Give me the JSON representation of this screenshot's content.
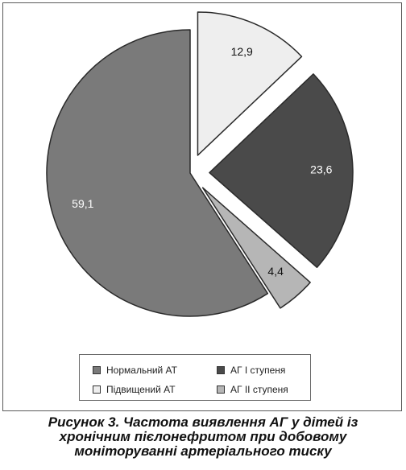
{
  "chart_data": {
    "type": "pie",
    "slices": [
      {
        "name": "Нормальний АТ",
        "value": 59.1,
        "label": "59,1",
        "color": "#7a7a7a",
        "label_color": "#ffffff",
        "exploded": false
      },
      {
        "name": "Підвищений АТ",
        "value": 12.9,
        "label": "12,9",
        "color": "#eeeeee",
        "label_color": "#111111",
        "exploded": true
      },
      {
        "name": "АГ I ступеня",
        "value": 23.6,
        "label": "23,6",
        "color": "#4a4a4a",
        "label_color": "#ffffff",
        "exploded": true
      },
      {
        "name": "АГ II ступеня",
        "value": 4.4,
        "label": "4,4",
        "color": "#b6b6b6",
        "label_color": "#111111",
        "exploded": true
      }
    ],
    "legend": {
      "placement": "bottom",
      "entries": [
        {
          "label": "Нормальний АТ",
          "color": "#7a7a7a"
        },
        {
          "label": "АГ I ступеня",
          "color": "#4a4a4a"
        },
        {
          "label": "Підвищений АТ",
          "color": "#eeeeee"
        },
        {
          "label": "АГ II ступеня",
          "color": "#b6b6b6"
        }
      ]
    },
    "outline_color": "#2a2a2a"
  },
  "caption": {
    "lines": [
      "Рисунок 3. Частота виявлення АГ у дітей із",
      "хронічним пієлонефритом при добовому",
      "моніторуванні артеріального тиску"
    ]
  }
}
